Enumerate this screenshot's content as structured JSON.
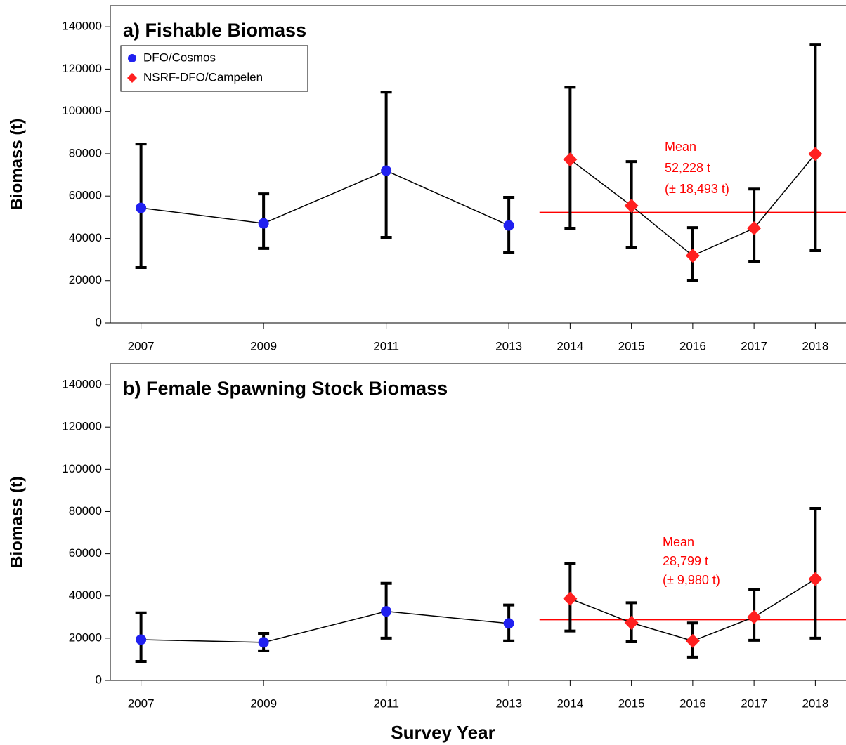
{
  "chart_data": [
    {
      "type": "errorbar-line",
      "title": "a) Fishable Biomass",
      "ylabel": "Biomass (t)",
      "xlim": [
        2006.5,
        2018.5
      ],
      "xticks": [
        2007,
        2009,
        2011,
        2013,
        2014,
        2015,
        2016,
        2017,
        2018
      ],
      "ylim": [
        0,
        150000
      ],
      "yticks": [
        0,
        20000,
        40000,
        60000,
        80000,
        100000,
        120000,
        140000
      ],
      "legend": "upper left",
      "series": [
        {
          "name": "DFO/Cosmos",
          "color": "#2020f0",
          "marker": "circle",
          "x": [
            2007,
            2009,
            2011,
            2013
          ],
          "values": [
            54400,
            47100,
            72000,
            46100
          ],
          "lower": [
            26200,
            35200,
            40500,
            33200
          ],
          "upper": [
            84600,
            61000,
            109100,
            59400
          ]
        },
        {
          "name": "NSRF-DFO/Campelen",
          "color": "#ff2020",
          "marker": "diamond",
          "x": [
            2014,
            2015,
            2016,
            2017,
            2018
          ],
          "values": [
            77300,
            55400,
            31800,
            44800,
            79900
          ],
          "lower": [
            44800,
            35800,
            19900,
            29200,
            34200
          ],
          "upper": [
            111400,
            76300,
            45100,
            63300,
            131700
          ]
        }
      ],
      "mean": {
        "value": 52228,
        "color": "#ff0000",
        "labels": [
          "Mean",
          "52,228 t",
          "(± 18,493 t)"
        ]
      }
    },
    {
      "type": "errorbar-line",
      "title": "b) Female Spawning Stock Biomass",
      "ylabel": "Biomass (t)",
      "xlabel": "Survey Year",
      "xlim": [
        2006.5,
        2018.5
      ],
      "xticks": [
        2007,
        2009,
        2011,
        2013,
        2014,
        2015,
        2016,
        2017,
        2018
      ],
      "ylim": [
        0,
        150000
      ],
      "yticks": [
        0,
        20000,
        40000,
        60000,
        80000,
        100000,
        120000,
        140000
      ],
      "series": [
        {
          "name": "DFO/Cosmos",
          "color": "#2020f0",
          "marker": "circle",
          "x": [
            2007,
            2009,
            2011,
            2013
          ],
          "values": [
            19300,
            18000,
            32700,
            27000
          ],
          "lower": [
            9000,
            14000,
            20000,
            18700
          ],
          "upper": [
            32000,
            22300,
            46000,
            35700
          ]
        },
        {
          "name": "NSRF-DFO/Campelen",
          "color": "#ff2020",
          "marker": "diamond",
          "x": [
            2014,
            2015,
            2016,
            2017,
            2018
          ],
          "values": [
            38700,
            27300,
            18700,
            30000,
            48000
          ],
          "lower": [
            23400,
            18300,
            11000,
            19000,
            20000
          ],
          "upper": [
            55500,
            36800,
            27200,
            43200,
            81500
          ]
        }
      ],
      "mean": {
        "value": 28799,
        "color": "#ff0000",
        "labels": [
          "Mean",
          "28,799 t",
          "(± 9,980 t)"
        ]
      }
    }
  ]
}
